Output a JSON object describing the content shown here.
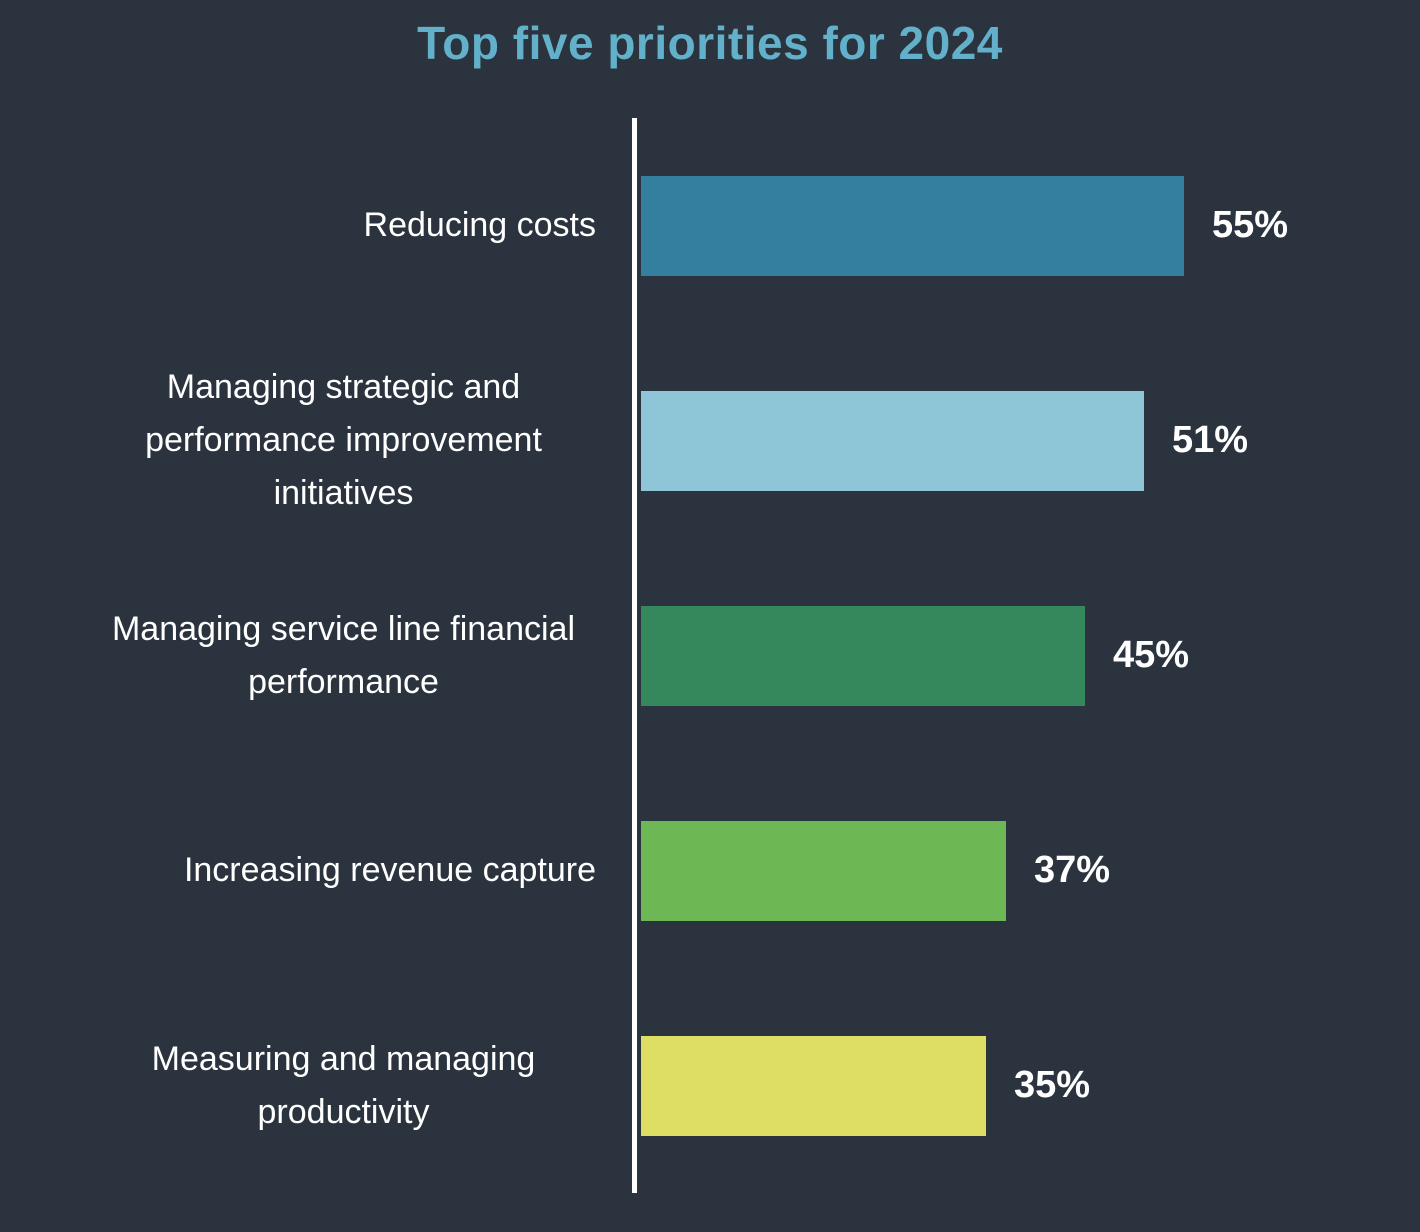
{
  "chart_data": {
    "type": "bar",
    "orientation": "horizontal",
    "title": "Top five priorities for 2024",
    "categories": [
      "Reducing costs",
      "Managing strategic and performance improvement initiatives",
      "Managing service line financial performance",
      "Increasing revenue capture",
      "Measuring and managing productivity"
    ],
    "values": [
      55,
      51,
      45,
      37,
      35
    ],
    "value_labels": [
      "55%",
      "51%",
      "45%",
      "37%",
      "35%"
    ],
    "colors": [
      "#337fa0",
      "#8ec6d7",
      "#35875c",
      "#6eb755",
      "#dedd64"
    ],
    "xlim": [
      0,
      60
    ],
    "grid": false,
    "legend": "none",
    "background_color": "#2b343e",
    "title_color": "#62b0c9",
    "text_color": "#ffffff",
    "axis_color": "#ffffff"
  }
}
